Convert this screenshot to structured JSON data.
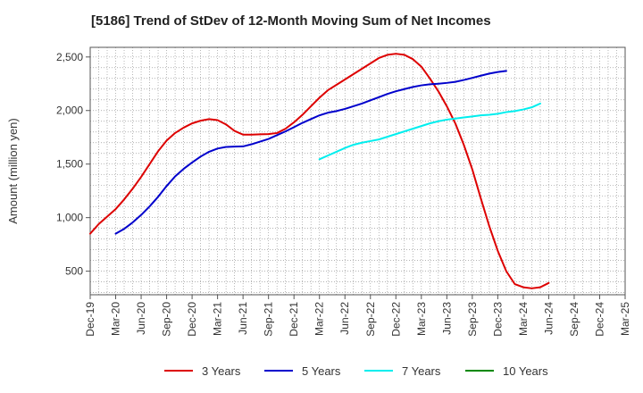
{
  "chart_data": {
    "type": "line",
    "title": "[5186]  Trend of StDev of 12-Month Moving Sum of Net Incomes",
    "xlabel": "",
    "ylabel": "Amount (million yen)",
    "ylim": [
      280,
      2590
    ],
    "yticks": [
      500,
      1000,
      1500,
      2000,
      2500
    ],
    "ytick_labels": [
      "500",
      "1,000",
      "1,500",
      "2,000",
      "2,500"
    ],
    "x_tick_labels": [
      "Dec-19",
      "Mar-20",
      "Jun-20",
      "Sep-20",
      "Dec-20",
      "Mar-21",
      "Jun-21",
      "Sep-21",
      "Dec-21",
      "Mar-22",
      "Jun-22",
      "Sep-22",
      "Dec-22",
      "Mar-23",
      "Jun-23",
      "Sep-23",
      "Dec-23",
      "Mar-24",
      "Jun-24",
      "Sep-24",
      "Dec-24",
      "Mar-25"
    ],
    "grid": true,
    "legend_position": "bottom",
    "series": [
      {
        "name": "3 Years",
        "color": "#dd0000",
        "start": "Dec-19",
        "values": [
          850,
          940,
          1010,
          1080,
          1170,
          1270,
          1380,
          1500,
          1620,
          1720,
          1790,
          1840,
          1880,
          1905,
          1920,
          1910,
          1870,
          1810,
          1775,
          1775,
          1778,
          1780,
          1790,
          1830,
          1890,
          1960,
          2040,
          2120,
          2190,
          2240,
          2290,
          2340,
          2390,
          2440,
          2490,
          2520,
          2530,
          2520,
          2480,
          2410,
          2300,
          2180,
          2040,
          1880,
          1680,
          1450,
          1180,
          920,
          690,
          500,
          380,
          350,
          340,
          350,
          390
        ]
      },
      {
        "name": "5 Years",
        "color": "#0000cc",
        "start": "Mar-20",
        "values": [
          850,
          895,
          955,
          1025,
          1105,
          1195,
          1295,
          1385,
          1455,
          1515,
          1570,
          1615,
          1645,
          1660,
          1663,
          1665,
          1685,
          1710,
          1735,
          1770,
          1805,
          1845,
          1885,
          1920,
          1955,
          1980,
          1995,
          2015,
          2040,
          2065,
          2095,
          2125,
          2155,
          2180,
          2200,
          2220,
          2235,
          2245,
          2250,
          2258,
          2268,
          2285,
          2305,
          2325,
          2345,
          2360,
          2370
        ]
      },
      {
        "name": "7 Years",
        "color": "#00eeee",
        "start": "Mar-22",
        "values": [
          1545,
          1580,
          1615,
          1650,
          1680,
          1700,
          1715,
          1730,
          1755,
          1780,
          1805,
          1830,
          1855,
          1880,
          1900,
          1915,
          1925,
          1935,
          1945,
          1955,
          1960,
          1970,
          1985,
          1995,
          2010,
          2030,
          2065
        ]
      },
      {
        "name": "10 Years",
        "color": "#008800",
        "start": "Mar-25",
        "values": []
      }
    ]
  }
}
